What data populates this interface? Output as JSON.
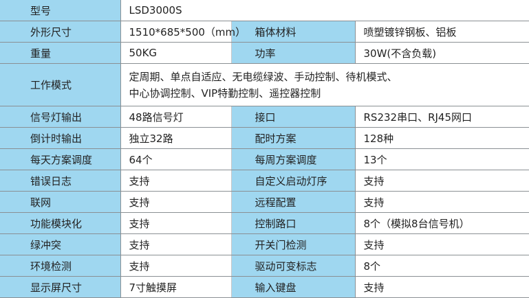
{
  "colors": {
    "label_bg": "#9fd7f0",
    "border": "#8a8f93"
  },
  "model": {
    "label": "型号",
    "value": "LSD3000S"
  },
  "row_size": {
    "l1": "外形尺寸",
    "v1": "1510*685*500（mm）",
    "l2": "箱体材料",
    "v2": "喷塑镀锌钢板、铝板"
  },
  "row_weight": {
    "l1": "重量",
    "v1": "50KG",
    "l2": "功率",
    "v2": "30W(不含负载)"
  },
  "work_mode": {
    "label": "工作模式",
    "line1": "定周期、单点自适应、无电缆绿波、手动控制、待机模式、",
    "line2": "中心协调控制、VIP特勤控制、遥控器控制"
  },
  "rows": [
    {
      "l1": "信号灯输出",
      "v1": "48路信号灯",
      "l2": "接口",
      "v2": "RS232串口、RJ45网口"
    },
    {
      "l1": "倒计时输出",
      "v1": "独立32路",
      "l2": "配时方案",
      "v2": "128种"
    },
    {
      "l1": "每天方案调度",
      "v1": "64个",
      "l2": "每周方案调度",
      "v2": "13个"
    },
    {
      "l1": "错误日志",
      "v1": "支持",
      "l2": "自定义启动灯序",
      "v2": "支持"
    },
    {
      "l1": "联网",
      "v1": "支持",
      "l2": "远程配置",
      "v2": "支持"
    },
    {
      "l1": "功能模块化",
      "v1": "支持",
      "l2": "控制路口",
      "v2": "8个（模拟8台信号机）"
    },
    {
      "l1": "绿冲突",
      "v1": "支持",
      "l2": "开关门检测",
      "v2": "支持"
    },
    {
      "l1": "环境检测",
      "v1": "支持",
      "l2": "驱动可变标志",
      "v2": "8个"
    },
    {
      "l1": "显示屏尺寸",
      "v1": "7寸触摸屏",
      "l2": "输入键盘",
      "v2": "支持"
    }
  ]
}
